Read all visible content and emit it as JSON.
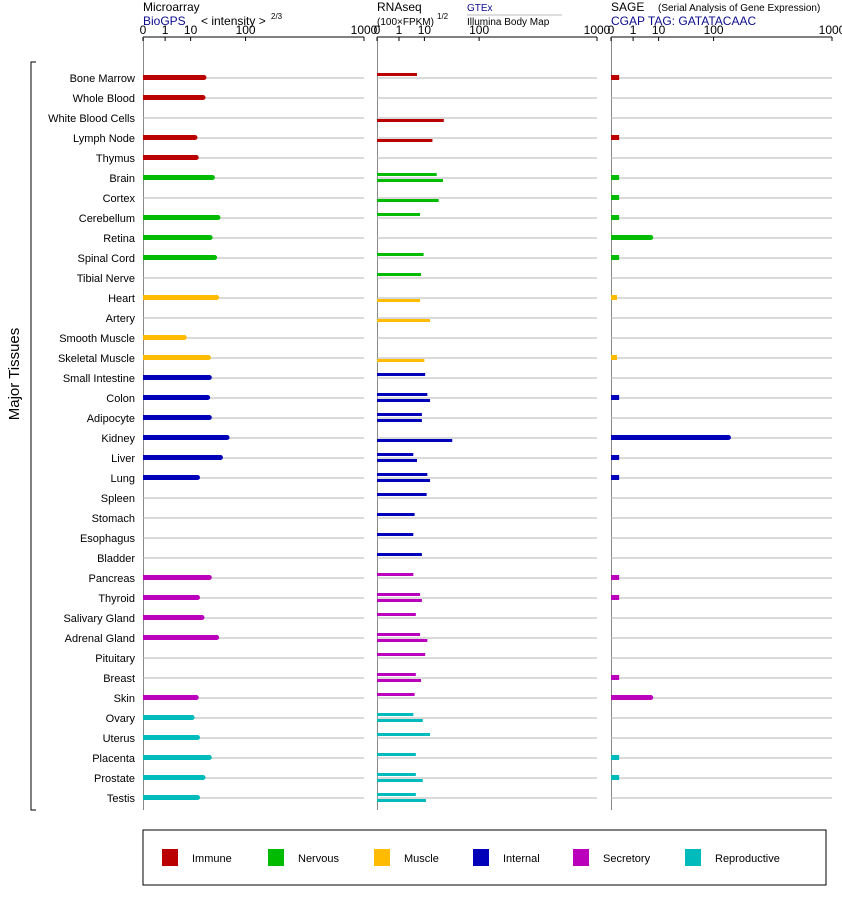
{
  "chart_data": {
    "type": "bar",
    "scale": "power-law (value^(1/3) style, ticks 0,1,10,100,1000)",
    "axis_ticks": [
      "0",
      "1",
      "10",
      "100",
      "1000"
    ],
    "ylabel": "Major Tissues",
    "tissues": [
      "Bone Marrow",
      "Whole Blood",
      "White Blood Cells",
      "Lymph Node",
      "Thymus",
      "Brain",
      "Cortex",
      "Cerebellum",
      "Retina",
      "Spinal Cord",
      "Tibial Nerve",
      "Heart",
      "Artery",
      "Smooth Muscle",
      "Skeletal Muscle",
      "Small Intestine",
      "Colon",
      "Adipocyte",
      "Kidney",
      "Liver",
      "Lung",
      "Spleen",
      "Stomach",
      "Esophagus",
      "Bladder",
      "Pancreas",
      "Thyroid",
      "Salivary Gland",
      "Adrenal Gland",
      "Pituitary",
      "Breast",
      "Skin",
      "Ovary",
      "Uterus",
      "Placenta",
      "Prostate",
      "Testis"
    ],
    "tissue_group": [
      "immune",
      "immune",
      "immune",
      "immune",
      "immune",
      "nervous",
      "nervous",
      "nervous",
      "nervous",
      "nervous",
      "nervous",
      "muscle",
      "muscle",
      "muscle",
      "muscle",
      "internal",
      "internal",
      "internal",
      "internal",
      "internal",
      "internal",
      "internal",
      "internal",
      "internal",
      "internal",
      "secretory",
      "secretory",
      "secretory",
      "secretory",
      "secretory",
      "secretory",
      "secretory",
      "reproductive",
      "reproductive",
      "reproductive",
      "reproductive",
      "reproductive"
    ],
    "panels": [
      {
        "id": "microarray",
        "title": "Microarray",
        "subtitle_source": "BioGPS",
        "subtitle_unit": "< intensity >",
        "subtitle_exp": "2/3",
        "values": [
          21,
          20,
          null,
          13,
          14,
          31,
          null,
          39,
          28,
          34,
          null,
          37,
          null,
          6.5,
          26,
          27,
          25,
          27,
          55,
          43,
          15,
          null,
          null,
          null,
          null,
          27,
          15,
          19,
          37,
          null,
          null,
          14,
          11,
          15,
          27,
          20,
          15
        ]
      },
      {
        "id": "rnaseq",
        "title": "RNAseq",
        "subtitle_unit": "(100×FPKM)",
        "subtitle_exp": "1/2",
        "source_a": "GTEx",
        "source_b": "Illumina Body Map",
        "values_gtex": [
          6.0,
          null,
          null,
          null,
          null,
          20,
          null,
          7.5,
          null,
          9.5,
          8.0,
          null,
          null,
          null,
          null,
          10.5,
          12,
          8.5,
          null,
          4.5,
          12,
          11.5,
          5.0,
          4.5,
          8.5,
          4.5,
          7.5,
          5.5,
          7.5,
          10.5,
          5.5,
          5.0,
          4.5,
          14,
          5.5,
          5.5,
          5.5
        ],
        "values_ibm": [
          null,
          null,
          28,
          16,
          null,
          27,
          22,
          null,
          null,
          null,
          null,
          7.5,
          14,
          null,
          10,
          null,
          14,
          8.5,
          40,
          6.0,
          14,
          null,
          null,
          null,
          null,
          null,
          8.5,
          null,
          12,
          null,
          8.0,
          null,
          9.0,
          null,
          null,
          9.0,
          11
        ]
      },
      {
        "id": "sage",
        "title": "SAGE",
        "title_note": "(Serial Analysis of Gene Expression)",
        "subtitle": "CGAP TAG: GATATACAAC",
        "values": [
          0.05,
          null,
          null,
          0.05,
          null,
          0.05,
          0.05,
          0.05,
          5.8,
          0.05,
          null,
          0.02,
          null,
          null,
          0.02,
          null,
          0.05,
          null,
          150,
          0.05,
          0.05,
          null,
          null,
          null,
          null,
          0.05,
          0.05,
          null,
          null,
          null,
          0.05,
          5.8,
          null,
          null,
          0.05,
          0.05,
          null
        ]
      }
    ],
    "legend": [
      {
        "key": "immune",
        "label": "Immune",
        "color": "#bb0000"
      },
      {
        "key": "nervous",
        "label": "Nervous",
        "color": "#00bb00"
      },
      {
        "key": "muscle",
        "label": "Muscle",
        "color": "#ffbb00"
      },
      {
        "key": "internal",
        "label": "Internal",
        "color": "#0000bb"
      },
      {
        "key": "secretory",
        "label": "Secretory",
        "color": "#bb00bb"
      },
      {
        "key": "reproductive",
        "label": "Reproductive",
        "color": "#00bbbb"
      }
    ]
  }
}
